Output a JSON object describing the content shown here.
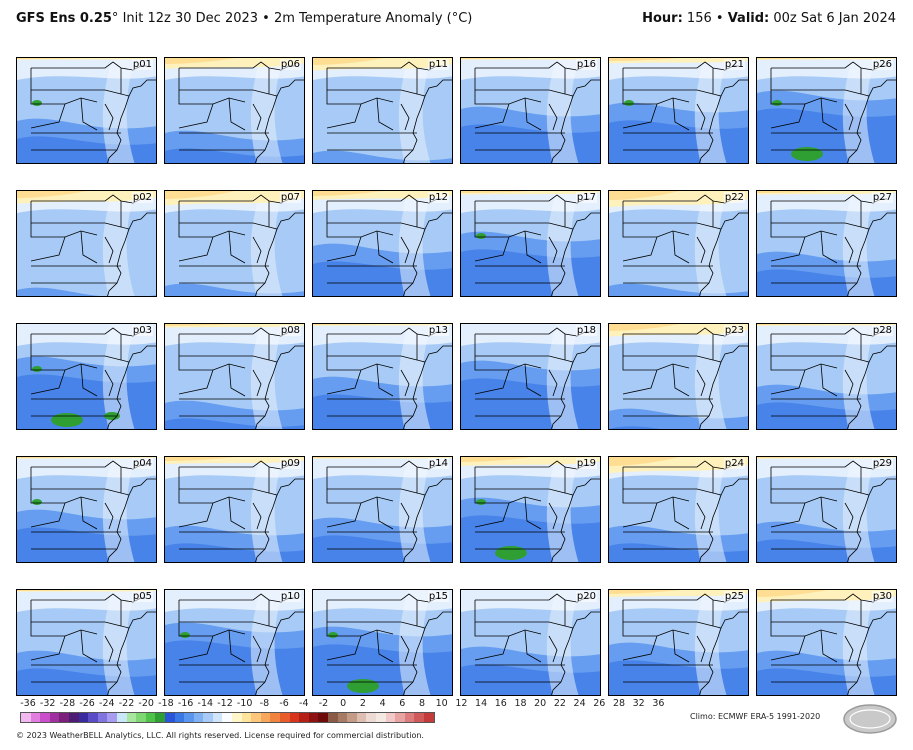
{
  "header": {
    "model": "GFS Ens 0.25",
    "degree": "°",
    "rest": "Init 12z 30 Dec 2023 • 2m Temperature Anomaly (°C)",
    "hour_label": "Hour:",
    "hour_value": "156",
    "valid_label": "Valid:",
    "valid_value": "00z Sat 6 Jan 2024"
  },
  "panels": [
    {
      "label": "p01",
      "warm": 0.05,
      "cold": 0.55,
      "green": 1
    },
    {
      "label": "p06",
      "warm": 0.3,
      "cold": 0.4,
      "green": 0
    },
    {
      "label": "p11",
      "warm": 0.35,
      "cold": 0.15,
      "green": 0
    },
    {
      "label": "p16",
      "warm": 0.05,
      "cold": 0.7,
      "green": 0
    },
    {
      "label": "p21",
      "warm": 0.15,
      "cold": 0.75,
      "green": 1
    },
    {
      "label": "p26",
      "warm": 0.05,
      "cold": 0.9,
      "green": 2
    },
    {
      "label": "p02",
      "warm": 0.35,
      "cold": 0.1,
      "green": 0
    },
    {
      "label": "p07",
      "warm": 0.4,
      "cold": 0.15,
      "green": 0
    },
    {
      "label": "p12",
      "warm": 0.25,
      "cold": 0.65,
      "green": 0
    },
    {
      "label": "p17",
      "warm": 0.1,
      "cold": 0.8,
      "green": 1
    },
    {
      "label": "p22",
      "warm": 0.45,
      "cold": 0.15,
      "green": 0
    },
    {
      "label": "p27",
      "warm": 0.1,
      "cold": 0.55,
      "green": 0
    },
    {
      "label": "p03",
      "warm": 0.0,
      "cold": 0.9,
      "green": 3
    },
    {
      "label": "p08",
      "warm": 0.1,
      "cold": 0.35,
      "green": 0
    },
    {
      "label": "p13",
      "warm": 0.05,
      "cold": 0.65,
      "green": 0
    },
    {
      "label": "p18",
      "warm": 0.0,
      "cold": 0.85,
      "green": 0
    },
    {
      "label": "p23",
      "warm": 0.35,
      "cold": 0.25,
      "green": 0
    },
    {
      "label": "p28",
      "warm": 0.05,
      "cold": 0.55,
      "green": 0
    },
    {
      "label": "p04",
      "warm": 0.05,
      "cold": 0.65,
      "green": 1
    },
    {
      "label": "p09",
      "warm": 0.2,
      "cold": 0.45,
      "green": 0
    },
    {
      "label": "p14",
      "warm": 0.05,
      "cold": 0.55,
      "green": 0
    },
    {
      "label": "p19",
      "warm": 0.25,
      "cold": 0.8,
      "green": 2
    },
    {
      "label": "p24",
      "warm": 0.45,
      "cold": 0.45,
      "green": 0
    },
    {
      "label": "p29",
      "warm": 0.05,
      "cold": 0.5,
      "green": 0
    },
    {
      "label": "p05",
      "warm": 0.05,
      "cold": 0.55,
      "green": 0
    },
    {
      "label": "p10",
      "warm": 0.0,
      "cold": 0.9,
      "green": 1
    },
    {
      "label": "p15",
      "warm": 0.0,
      "cold": 0.85,
      "green": 2
    },
    {
      "label": "p20",
      "warm": 0.0,
      "cold": 0.6,
      "green": 0
    },
    {
      "label": "p25",
      "warm": 0.2,
      "cold": 0.65,
      "green": 0
    },
    {
      "label": "p30",
      "warm": 0.35,
      "cold": 0.55,
      "green": 0
    }
  ],
  "colorbar": {
    "ticks": [
      "-36",
      "-32",
      "-28",
      "-26",
      "-24",
      "-22",
      "-20",
      "-18",
      "-16",
      "-14",
      "-12",
      "-10",
      "-8",
      "-6",
      "-4",
      "-2",
      "0",
      "2",
      "4",
      "6",
      "8",
      "10",
      "12",
      "14",
      "16",
      "18",
      "20",
      "22",
      "24",
      "26",
      "28",
      "32",
      "36"
    ],
    "colors": [
      "#f2b8f0",
      "#e27de0",
      "#c94fcb",
      "#a0309f",
      "#7c1f7c",
      "#4d1b73",
      "#3b2a9e",
      "#5a4cc6",
      "#7f74e0",
      "#a79cf0",
      "#c8e7f7",
      "#a8e6a0",
      "#7fd774",
      "#4fc24a",
      "#2f9f33",
      "#2b55d8",
      "#3a78e6",
      "#5a95ee",
      "#7fb1f3",
      "#a7cbf6",
      "#d0e4fa",
      "#fbfcff",
      "#fff7c9",
      "#ffe49c",
      "#fcc77a",
      "#f7a75b",
      "#f0843f",
      "#e85c2a",
      "#d8351c",
      "#b51f16",
      "#8e1212",
      "#6d0b0b",
      "#8a5a44",
      "#a67a63",
      "#c49b86",
      "#ddbeb0",
      "#eddad2",
      "#f5e9e4",
      "#f2c9c9",
      "#e8a3a3",
      "#dd7c7c",
      "#d05a5a",
      "#c43b3b"
    ]
  },
  "climo": "Climo: ECMWF ERA-5 1991-2020",
  "copyright": "© 2023 WeatherBELL Analytics, LLC. All rights reserved. License required for commercial distribution."
}
